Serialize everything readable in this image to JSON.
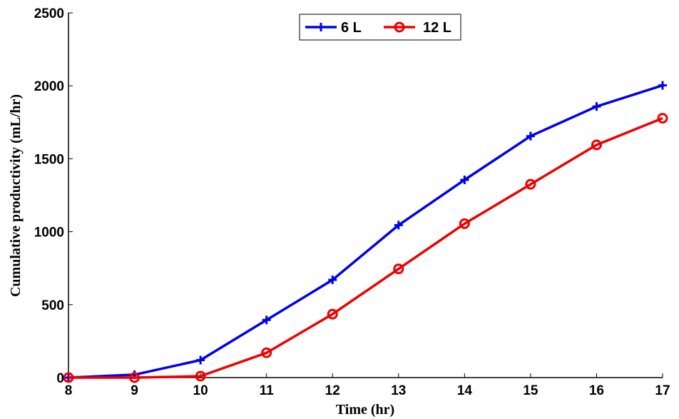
{
  "chart_data": {
    "type": "line",
    "title": "",
    "xlabel": "Time (hr)",
    "ylabel": "Cumulative productivity (mL/hr)",
    "x": [
      8,
      9,
      10,
      11,
      12,
      13,
      14,
      15,
      16,
      17
    ],
    "xlim": [
      8,
      17
    ],
    "ylim": [
      0,
      2500
    ],
    "xticks": [
      "8",
      "9",
      "10",
      "11",
      "12",
      "13",
      "14",
      "15",
      "16",
      "17"
    ],
    "yticks": [
      "0",
      "500",
      "1000",
      "1500",
      "2000",
      "2500"
    ],
    "grid": false,
    "legend_position": "top-center",
    "series": [
      {
        "name": "6 L",
        "color": "#0000ee",
        "marker": "plus",
        "values": [
          0,
          20,
          120,
          395,
          670,
          1045,
          1355,
          1655,
          1858,
          2003
        ]
      },
      {
        "name": "12 L",
        "color": "#ee0000",
        "marker": "circle",
        "values": [
          0,
          0,
          10,
          170,
          435,
          745,
          1055,
          1325,
          1595,
          1778
        ]
      }
    ]
  }
}
